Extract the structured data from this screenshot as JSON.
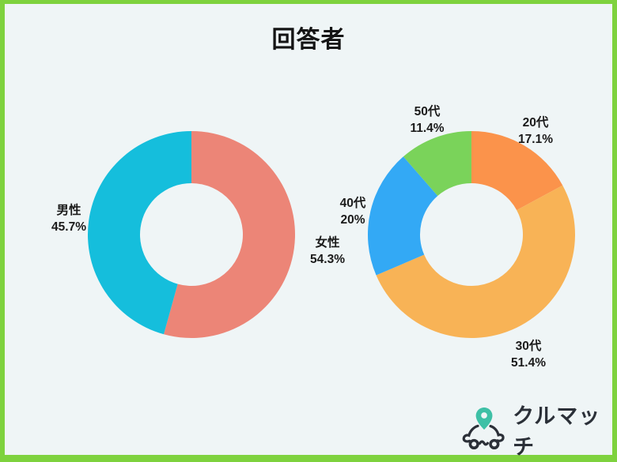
{
  "title": "回答者",
  "colors": {
    "border": "#7ED23E",
    "background": "#EFF5F6",
    "text": "#1B1B1B"
  },
  "chart_data": [
    {
      "type": "pie",
      "subtype": "donut",
      "name": "gender-distribution",
      "title": "",
      "legend_position": "none",
      "start_angle_deg": 0,
      "direction": "clockwise",
      "slices": [
        {
          "label": "女性",
          "value": 54.3,
          "pct_text": "54.3%",
          "color": "#EC8577"
        },
        {
          "label": "男性",
          "value": 45.7,
          "pct_text": "45.7%",
          "color": "#15BEDC"
        }
      ]
    },
    {
      "type": "pie",
      "subtype": "donut",
      "name": "age-distribution",
      "title": "",
      "legend_position": "none",
      "start_angle_deg": 0,
      "direction": "clockwise",
      "slices": [
        {
          "label": "20代",
          "value": 17.1,
          "pct_text": "17.1%",
          "color": "#FB934B"
        },
        {
          "label": "30代",
          "value": 51.4,
          "pct_text": "51.4%",
          "color": "#F8B356"
        },
        {
          "label": "40代",
          "value": 20,
          "pct_text": "20%",
          "color": "#33A9F5"
        },
        {
          "label": "50代",
          "value": 11.4,
          "pct_text": "11.4%",
          "color": "#7AD35A"
        }
      ]
    }
  ],
  "logo": {
    "text": "クルマッチ",
    "pin_color": "#3EC0A6",
    "line_color": "#2B3038"
  }
}
